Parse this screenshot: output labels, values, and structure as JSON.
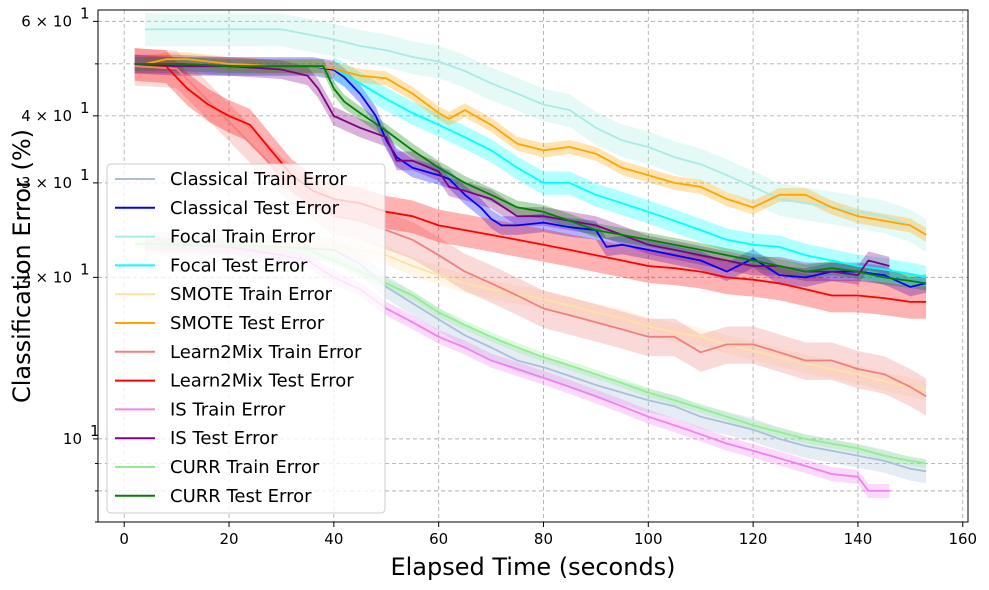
{
  "chart_data": {
    "type": "line",
    "title": "",
    "xlabel": "Elapsed Time (seconds)",
    "ylabel": "Classification Error (%)",
    "yscale": "log",
    "xlim": [
      -5,
      161
    ],
    "ylim": [
      7.0,
      63.0
    ],
    "grid": true,
    "legend_loc": "lower-left",
    "x_ticks": [
      0,
      20,
      40,
      60,
      80,
      100,
      120,
      140,
      160
    ],
    "x_tick_labels": [
      "0",
      "20",
      "40",
      "60",
      "80",
      "100",
      "120",
      "140",
      "160"
    ],
    "y_major_ticks": [
      10,
      20,
      30,
      40,
      60
    ],
    "y_major_tick_labels": [
      "10",
      "2 × 10",
      "3 × 10",
      "4 × 10",
      "6 × 10"
    ],
    "y_major_tick_exponent": "1",
    "y_minor_ticks": [
      7,
      8,
      9,
      50
    ],
    "series": [
      {
        "name": "Classical Train Error",
        "color": "#a9bfdc",
        "band_width": 0.05,
        "x": [
          4,
          10,
          20,
          30,
          40,
          45,
          50,
          55,
          60,
          65,
          70,
          75,
          80,
          85,
          90,
          95,
          100,
          105,
          110,
          115,
          120,
          125,
          130,
          135,
          140,
          145,
          150,
          153
        ],
        "y": [
          23.1,
          23.1,
          23.0,
          22.8,
          22.5,
          21.2,
          19.2,
          17.9,
          16.7,
          15.6,
          14.8,
          14.0,
          13.6,
          13.1,
          12.6,
          12.2,
          11.8,
          11.5,
          11.0,
          10.7,
          10.4,
          10.0,
          9.7,
          9.5,
          9.3,
          9.1,
          8.8,
          8.7
        ]
      },
      {
        "name": "Classical Test Error",
        "color": "#0000ff",
        "band_width": 0.04,
        "x": [
          2,
          10,
          20,
          30,
          36,
          40,
          42,
          45,
          48,
          50,
          52,
          55,
          60,
          62,
          65,
          68,
          70,
          72,
          75,
          80,
          85,
          90,
          92,
          95,
          100,
          105,
          110,
          115,
          120,
          125,
          130,
          135,
          140,
          145,
          150,
          153
        ],
        "y": [
          50,
          50,
          49.5,
          49.5,
          49.5,
          48.7,
          47.2,
          44,
          40,
          36,
          33.5,
          32,
          31,
          30.5,
          28.5,
          27,
          25.7,
          25,
          25,
          25.3,
          24.8,
          24.5,
          22.8,
          23,
          22.5,
          22,
          21.5,
          20.5,
          21.7,
          20.2,
          20,
          20.5,
          20.5,
          20.2,
          19.2,
          19.5
        ]
      },
      {
        "name": "Focal Train Error",
        "color": "#a8ece6",
        "band_width": 0.07,
        "x": [
          4,
          10,
          20,
          30,
          40,
          45,
          50,
          55,
          60,
          65,
          70,
          75,
          80,
          85,
          90,
          95,
          100,
          105,
          110,
          115,
          120,
          125,
          130,
          135,
          140,
          145,
          150,
          153
        ],
        "y": [
          58,
          58,
          58,
          58,
          55.5,
          54,
          53,
          51.5,
          50.5,
          48.5,
          46,
          44,
          42,
          41,
          38,
          36,
          35,
          33.5,
          32.5,
          31,
          29.5,
          28,
          27.5,
          27,
          26.5,
          26,
          25,
          24
        ]
      },
      {
        "name": "Focal Test Error",
        "color": "#00ffff",
        "band_width": 0.05,
        "x": [
          40,
          45,
          50,
          55,
          60,
          65,
          70,
          75,
          80,
          85,
          90,
          95,
          100,
          105,
          110,
          115,
          120,
          125,
          130,
          135,
          140,
          145,
          150,
          153
        ],
        "y": [
          49,
          46,
          43,
          40.5,
          38.5,
          36.5,
          34.5,
          32,
          30,
          30,
          28.5,
          27.5,
          26.5,
          25.5,
          24.5,
          23.5,
          23,
          22.8,
          22,
          21.5,
          21,
          20.7,
          20.3,
          20
        ]
      },
      {
        "name": "SMOTE Train Error",
        "color": "#ffe1a8",
        "band_width": 0.04,
        "x": [
          4,
          10,
          20,
          30,
          40,
          45,
          50,
          55,
          60,
          65,
          70,
          75,
          80,
          85,
          90,
          95,
          100,
          105,
          110,
          115,
          120,
          125,
          130,
          135,
          140,
          145,
          150,
          153
        ],
        "y": [
          23,
          23,
          23,
          23,
          22.8,
          22.5,
          22,
          21,
          20.2,
          19.5,
          19,
          18.6,
          18.2,
          17.7,
          17.2,
          16.8,
          16.2,
          15.8,
          15.5,
          15,
          14.6,
          14.2,
          13.8,
          13.5,
          13.2,
          12.8,
          12.5,
          12.3
        ]
      },
      {
        "name": "SMOTE Test Error",
        "color": "#ffa500",
        "band_width": 0.03,
        "x": [
          4,
          8,
          12,
          16,
          20,
          24,
          28,
          32,
          36,
          40,
          45,
          50,
          55,
          60,
          62,
          65,
          70,
          75,
          80,
          85,
          90,
          95,
          100,
          105,
          110,
          115,
          120,
          125,
          130,
          135,
          140,
          145,
          150,
          153
        ],
        "y": [
          50,
          51,
          51,
          50.5,
          50,
          49.8,
          49.5,
          49.5,
          49.5,
          49,
          47.5,
          47,
          44,
          40.5,
          39.5,
          41,
          38.5,
          35.5,
          34.5,
          35,
          34,
          32,
          31,
          30,
          29.5,
          28,
          27,
          28.5,
          28.5,
          27,
          26,
          25.5,
          25,
          24
        ]
      },
      {
        "name": "Learn2Mix Train Error",
        "color": "#f08080",
        "band_width": 0.08,
        "x": [
          2,
          10,
          20,
          30,
          40,
          45,
          50,
          55,
          60,
          65,
          70,
          75,
          80,
          85,
          90,
          95,
          100,
          105,
          110,
          115,
          120,
          125,
          130,
          135,
          140,
          145,
          150,
          153
        ],
        "y": [
          49.5,
          49,
          39,
          31,
          26,
          25.5,
          24.5,
          23.5,
          22,
          20.5,
          19.5,
          18.5,
          17.5,
          17,
          16.5,
          16,
          15.5,
          15.5,
          14.5,
          15,
          15,
          14.5,
          14,
          14,
          13.5,
          13.2,
          12.5,
          12.0
        ]
      },
      {
        "name": "Learn2Mix Test Error",
        "color": "#ff0000",
        "band_width": 0.07,
        "x": [
          2,
          8,
          12,
          16,
          20,
          24,
          28,
          32,
          36,
          40,
          45,
          50,
          55,
          60,
          65,
          70,
          75,
          80,
          85,
          90,
          95,
          100,
          105,
          110,
          115,
          120,
          125,
          130,
          135,
          140,
          145,
          150,
          153
        ],
        "y": [
          50,
          49.5,
          45,
          42,
          40,
          38.5,
          34.5,
          31,
          29,
          28,
          27.5,
          26.5,
          26,
          25,
          24.5,
          24,
          23.5,
          23,
          22.5,
          22,
          21.5,
          21,
          20.8,
          20.5,
          20,
          19.8,
          19.5,
          19,
          18.5,
          18.5,
          18.3,
          18,
          18
        ]
      },
      {
        "name": "IS Train Error",
        "color": "#ee82ee",
        "band_width": 0.03,
        "x": [
          4,
          10,
          20,
          30,
          35,
          40,
          45,
          50,
          55,
          60,
          65,
          70,
          75,
          80,
          85,
          90,
          95,
          100,
          105,
          110,
          115,
          120,
          125,
          130,
          135,
          140,
          142,
          146
        ],
        "y": [
          23.1,
          23,
          22.8,
          22,
          21.5,
          20,
          19,
          17.5,
          16.5,
          15.5,
          14.8,
          14,
          13.5,
          13,
          12.5,
          12,
          11.5,
          11,
          10.6,
          10.2,
          9.8,
          9.5,
          9.2,
          8.9,
          8.6,
          8.5,
          8.0,
          8.0
        ]
      },
      {
        "name": "IS Test Error",
        "color": "#800080",
        "band_width": 0.04,
        "x": [
          2,
          10,
          20,
          30,
          35,
          37,
          40,
          45,
          50,
          52,
          55,
          60,
          62,
          65,
          70,
          75,
          80,
          85,
          90,
          95,
          100,
          105,
          110,
          115,
          120,
          125,
          130,
          135,
          140,
          142,
          146
        ],
        "y": [
          50,
          49.5,
          49.5,
          48.8,
          47.5,
          45,
          40,
          38,
          36.5,
          33,
          33,
          31.5,
          29.5,
          29,
          28,
          26,
          26,
          25.5,
          25,
          24,
          23,
          22.5,
          22,
          21.5,
          21,
          21,
          20.5,
          20.5,
          20.2,
          21.5,
          21
        ]
      },
      {
        "name": "CURR Train Error",
        "color": "#90ee90",
        "band_width": 0.02,
        "x": [
          2,
          10,
          20,
          30,
          35,
          40,
          45,
          50,
          55,
          60,
          65,
          70,
          75,
          80,
          85,
          90,
          95,
          100,
          105,
          110,
          115,
          120,
          125,
          130,
          135,
          140,
          145,
          150,
          153
        ],
        "y": [
          23.1,
          23.1,
          23.0,
          22.8,
          22.5,
          21.5,
          20.5,
          19.5,
          18.5,
          17.2,
          16.3,
          15.5,
          14.8,
          14.2,
          13.7,
          13.2,
          12.7,
          12.2,
          11.8,
          11.4,
          11.0,
          10.6,
          10.3,
          10.0,
          9.8,
          9.6,
          9.3,
          9.1,
          9.0
        ]
      },
      {
        "name": "CURR Test Error",
        "color": "#008000",
        "band_width": 0.03,
        "x": [
          2,
          10,
          20,
          30,
          36,
          38,
          40,
          42,
          45,
          50,
          55,
          60,
          65,
          70,
          75,
          80,
          85,
          90,
          95,
          100,
          105,
          110,
          115,
          120,
          125,
          130,
          135,
          140,
          145,
          150,
          153
        ],
        "y": [
          50,
          50,
          49.5,
          49.5,
          49.5,
          49.5,
          45,
          42.5,
          40.5,
          37.5,
          34.5,
          32,
          30,
          28.5,
          27,
          26.5,
          25.5,
          24.5,
          24,
          23.5,
          23,
          22.5,
          22,
          21.5,
          21,
          20.5,
          20.8,
          20.5,
          20,
          19.7,
          19.5
        ]
      }
    ]
  }
}
